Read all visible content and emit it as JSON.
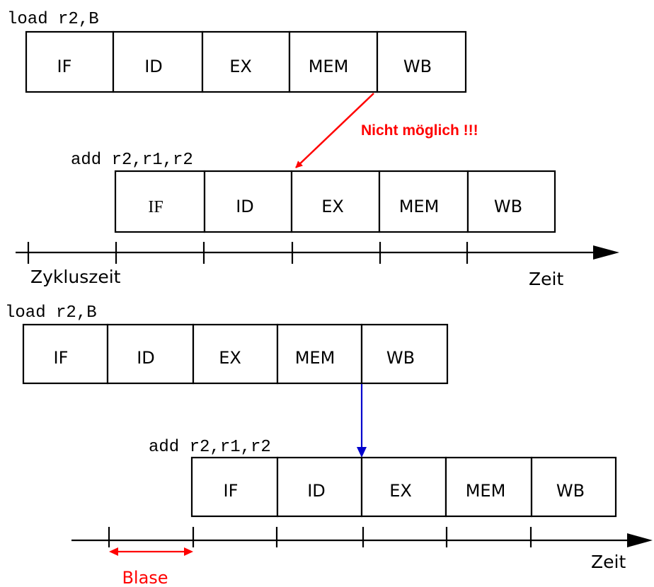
{
  "top": {
    "instr1": "load r2,B",
    "instr2": "add r2,r1,r2",
    "stages1": [
      "IF",
      "ID",
      "EX",
      "MEM",
      "WB"
    ],
    "stages2": [
      "IF",
      "ID",
      "EX",
      "MEM",
      "WB"
    ],
    "note": "Nicht möglich !!!",
    "axis_left": "Zykluszeit",
    "axis_right": "Zeit"
  },
  "bottom": {
    "instr1": "load r2,B",
    "instr2": "add r2,r1,r2",
    "stages1": [
      "IF",
      "ID",
      "EX",
      "MEM",
      "WB"
    ],
    "stages2": [
      "IF",
      "ID",
      "EX",
      "MEM",
      "WB"
    ],
    "bubble": "Blase",
    "axis_right": "Zeit"
  },
  "colors": {
    "stroke": "#000000",
    "red_arrow": "#ff0000",
    "blue_arrow": "#0000cc"
  }
}
